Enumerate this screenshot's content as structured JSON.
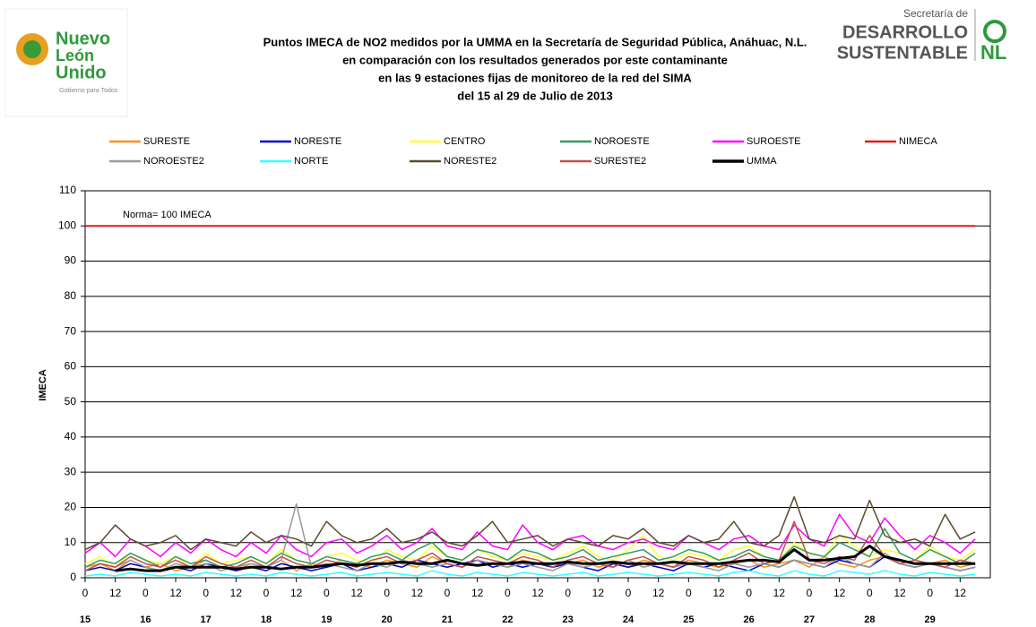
{
  "logos": {
    "left": [
      "Nuevo",
      "León",
      "Unido",
      "Gobierno para Todos"
    ],
    "right": [
      "Secretaría de",
      "DESARROLLO",
      "SUSTENTABLE",
      "NL"
    ]
  },
  "chart_data": {
    "type": "line",
    "title": [
      "Puntos IMECA de NO2 medidos por la UMMA en la Secretaría de Seguridad Pública, Anáhuac, N.L.",
      "en comparación con los resultados generados por este contaminante",
      "en las 9 estaciones fijas de monitoreo de la red del SIMA",
      "del 15 al 29 de Julio de 2013"
    ],
    "ylabel": "IMECA",
    "annotation": "Norma= 100 IMECA",
    "xlim": [
      0,
      360
    ],
    "ylim": [
      0,
      110
    ],
    "yticks": [
      0,
      10,
      20,
      30,
      40,
      50,
      60,
      70,
      80,
      90,
      100,
      110
    ],
    "grid": true,
    "xticks": [
      0,
      12,
      {
        "value": 24,
        "label": "0"
      },
      {
        "value": 36,
        "label": "12"
      },
      {
        "value": 48,
        "label": "0"
      },
      {
        "value": 60,
        "label": "12"
      },
      {
        "value": 72,
        "label": "0"
      },
      {
        "value": 84,
        "label": "12"
      },
      {
        "value": 96,
        "label": "0"
      },
      {
        "value": 108,
        "label": "12"
      },
      {
        "value": 120,
        "label": "0"
      },
      {
        "value": 132,
        "label": "12"
      },
      {
        "value": 144,
        "label": "0"
      },
      {
        "value": 156,
        "label": "12"
      },
      {
        "value": 168,
        "label": "0"
      },
      {
        "value": 180,
        "label": "12"
      },
      {
        "value": 192,
        "label": "0"
      },
      {
        "value": 204,
        "label": "12"
      },
      {
        "value": 216,
        "label": "0"
      },
      {
        "value": 228,
        "label": "12"
      },
      {
        "value": 240,
        "label": "0"
      },
      {
        "value": 252,
        "label": "12"
      },
      {
        "value": 264,
        "label": "0"
      },
      {
        "value": 276,
        "label": "12"
      },
      {
        "value": 288,
        "label": "0"
      },
      {
        "value": 300,
        "label": "12"
      },
      {
        "value": 312,
        "label": "0"
      },
      {
        "value": 324,
        "label": "12"
      },
      {
        "value": 336,
        "label": "0"
      },
      {
        "value": 348,
        "label": "12"
      }
    ],
    "day_labels": [
      {
        "value": 0,
        "label": "15"
      },
      {
        "value": 24,
        "label": "16"
      },
      {
        "value": 48,
        "label": "17"
      },
      {
        "value": 72,
        "label": "18"
      },
      {
        "value": 96,
        "label": "19"
      },
      {
        "value": 120,
        "label": "20"
      },
      {
        "value": 144,
        "label": "21"
      },
      {
        "value": 168,
        "label": "22"
      },
      {
        "value": 192,
        "label": "23"
      },
      {
        "value": 216,
        "label": "24"
      },
      {
        "value": 240,
        "label": "25"
      },
      {
        "value": 264,
        "label": "26"
      },
      {
        "value": 288,
        "label": "27"
      },
      {
        "value": 312,
        "label": "28"
      },
      {
        "value": 336,
        "label": "29"
      }
    ],
    "x": [
      0,
      6,
      12,
      18,
      24,
      30,
      36,
      42,
      48,
      54,
      60,
      66,
      72,
      78,
      84,
      90,
      96,
      102,
      108,
      114,
      120,
      126,
      132,
      138,
      144,
      150,
      156,
      162,
      168,
      174,
      180,
      186,
      192,
      198,
      204,
      210,
      216,
      222,
      228,
      234,
      240,
      246,
      252,
      258,
      264,
      270,
      276,
      282,
      288,
      294,
      300,
      306,
      312,
      318,
      324,
      330,
      336,
      342,
      348,
      354
    ],
    "series": [
      {
        "name": "SURESTE",
        "color": "#f7941d",
        "values": [
          3,
          4,
          2,
          5,
          3,
          4,
          2,
          3,
          5,
          3,
          2,
          4,
          3,
          5,
          2,
          4,
          3,
          5,
          4,
          3,
          5,
          4,
          3,
          6,
          4,
          3,
          5,
          4,
          3,
          5,
          4,
          3,
          4,
          5,
          3,
          4,
          3,
          5,
          4,
          3,
          5,
          4,
          3,
          4,
          5,
          3,
          4,
          5,
          3,
          6,
          4,
          3,
          5,
          6,
          4,
          3,
          4,
          5,
          3,
          4
        ]
      },
      {
        "name": "NORESTE",
        "color": "#0000cc",
        "values": [
          2,
          3,
          2,
          4,
          3,
          2,
          3,
          2,
          4,
          3,
          2,
          3,
          2,
          4,
          3,
          2,
          3,
          4,
          2,
          3,
          4,
          3,
          5,
          4,
          3,
          4,
          5,
          3,
          4,
          3,
          4,
          3,
          4,
          3,
          2,
          4,
          3,
          4,
          3,
          2,
          4,
          3,
          4,
          3,
          2,
          4,
          3,
          5,
          4,
          3,
          5,
          4,
          3,
          6,
          4,
          3,
          4,
          3,
          2,
          3
        ]
      },
      {
        "name": "CENTRO",
        "color": "#ffff33",
        "values": [
          4,
          6,
          3,
          7,
          5,
          4,
          6,
          3,
          7,
          4,
          5,
          6,
          4,
          8,
          5,
          4,
          6,
          7,
          5,
          4,
          8,
          6,
          5,
          9,
          6,
          5,
          8,
          6,
          5,
          7,
          6,
          5,
          7,
          9,
          6,
          5,
          8,
          12,
          6,
          5,
          7,
          6,
          5,
          8,
          9,
          6,
          5,
          10,
          7,
          6,
          12,
          9,
          6,
          8,
          7,
          5,
          9,
          6,
          5,
          8
        ]
      },
      {
        "name": "NOROESTE",
        "color": "#339966",
        "values": [
          3,
          5,
          4,
          7,
          5,
          3,
          6,
          4,
          5,
          3,
          4,
          6,
          4,
          7,
          5,
          4,
          6,
          5,
          4,
          6,
          7,
          5,
          8,
          10,
          6,
          5,
          8,
          7,
          5,
          8,
          7,
          5,
          6,
          8,
          5,
          6,
          7,
          8,
          5,
          6,
          8,
          7,
          5,
          6,
          8,
          6,
          5,
          9,
          7,
          6,
          10,
          8,
          6,
          14,
          7,
          5,
          8,
          6,
          4,
          7
        ]
      },
      {
        "name": "SUROESTE",
        "color": "#ff00ff",
        "values": [
          7,
          10,
          6,
          11,
          9,
          6,
          10,
          7,
          11,
          8,
          6,
          10,
          7,
          12,
          8,
          6,
          10,
          11,
          7,
          9,
          12,
          8,
          10,
          14,
          9,
          8,
          13,
          9,
          8,
          15,
          10,
          8,
          11,
          12,
          9,
          8,
          10,
          11,
          9,
          8,
          12,
          10,
          8,
          11,
          12,
          9,
          8,
          15,
          11,
          9,
          18,
          12,
          10,
          17,
          12,
          8,
          12,
          10,
          7,
          11
        ]
      },
      {
        "name": "NIMECA",
        "color": "#e31a1c",
        "values": [
          100,
          100,
          100,
          100,
          100,
          100,
          100,
          100,
          100,
          100,
          100,
          100,
          100,
          100,
          100,
          100,
          100,
          100,
          100,
          100,
          100,
          100,
          100,
          100,
          100,
          100,
          100,
          100,
          100,
          100,
          100,
          100,
          100,
          100,
          100,
          100,
          100,
          100,
          100,
          100,
          100,
          100,
          100,
          100,
          100,
          100,
          100,
          100,
          100,
          100,
          100,
          100,
          100,
          100,
          100,
          100,
          100,
          100,
          100,
          100
        ]
      },
      {
        "name": "NOROESTE2",
        "color": "#999999",
        "values": [
          2,
          4,
          3,
          5,
          3,
          2,
          4,
          3,
          4,
          2,
          3,
          4,
          3,
          5,
          21,
          3,
          4,
          3,
          2,
          4,
          3,
          5,
          4,
          3,
          4,
          3,
          5,
          4,
          3,
          4,
          3,
          2,
          4,
          3,
          4,
          3,
          5,
          3,
          4,
          3,
          4,
          3,
          2,
          4,
          3,
          4,
          3,
          5,
          4,
          3,
          6,
          4,
          3,
          7,
          4,
          3,
          4,
          3,
          2,
          3
        ]
      },
      {
        "name": "NORTE",
        "color": "#33ffff",
        "values": [
          0.5,
          1,
          0.5,
          1.5,
          1,
          0.5,
          1,
          0.5,
          1.5,
          1,
          0.5,
          1,
          0.5,
          1.5,
          1,
          0.5,
          1,
          1.5,
          0.5,
          1,
          1.5,
          1,
          0.5,
          2,
          1,
          0.5,
          1.5,
          1,
          0.5,
          1.5,
          1,
          0.5,
          1,
          1.5,
          0.5,
          1,
          1.5,
          1,
          0.5,
          1,
          1.5,
          1,
          0.5,
          1.5,
          2,
          1,
          0.5,
          2,
          1,
          0.5,
          2,
          1.5,
          1,
          2,
          1,
          0.5,
          1.5,
          1,
          0.5,
          1
        ]
      },
      {
        "name": "NORESTE2",
        "color": "#5c4a2e",
        "values": [
          8,
          10,
          15,
          11,
          9,
          10,
          12,
          8,
          11,
          10,
          9,
          13,
          10,
          12,
          11,
          9,
          16,
          12,
          10,
          11,
          14,
          10,
          11,
          13,
          10,
          9,
          12,
          16,
          10,
          11,
          12,
          9,
          11,
          10,
          9,
          12,
          11,
          14,
          10,
          9,
          12,
          10,
          11,
          16,
          10,
          9,
          12,
          23,
          11,
          10,
          12,
          11,
          22,
          12,
          10,
          11,
          9,
          18,
          11,
          13
        ]
      },
      {
        "name": "SURESTE2",
        "color": "#c0504d",
        "values": [
          2,
          4,
          3,
          6,
          4,
          3,
          5,
          3,
          6,
          4,
          3,
          5,
          3,
          6,
          4,
          3,
          5,
          4,
          3,
          5,
          6,
          4,
          5,
          7,
          4,
          3,
          6,
          5,
          4,
          6,
          5,
          3,
          5,
          6,
          4,
          3,
          5,
          6,
          4,
          3,
          6,
          5,
          3,
          5,
          7,
          4,
          5,
          16,
          5,
          4,
          6,
          5,
          12,
          6,
          4,
          5,
          4,
          3,
          5,
          4
        ]
      },
      {
        "name": "UMMA",
        "color": "#000000",
        "values": [
          null,
          null,
          2,
          2.5,
          2,
          2,
          3,
          3,
          3,
          3,
          2.5,
          3,
          3,
          2.5,
          3,
          3,
          3.5,
          4,
          3.5,
          4,
          4,
          4.5,
          4,
          4,
          5,
          4,
          3.5,
          4,
          4,
          4.5,
          4,
          4,
          4.5,
          4,
          4,
          4.5,
          4,
          4,
          4,
          4.5,
          4,
          4,
          4,
          4.5,
          5,
          5,
          4.5,
          8,
          5,
          5,
          5.5,
          6,
          9,
          6,
          5,
          4,
          4,
          4,
          4,
          4
        ]
      }
    ]
  }
}
